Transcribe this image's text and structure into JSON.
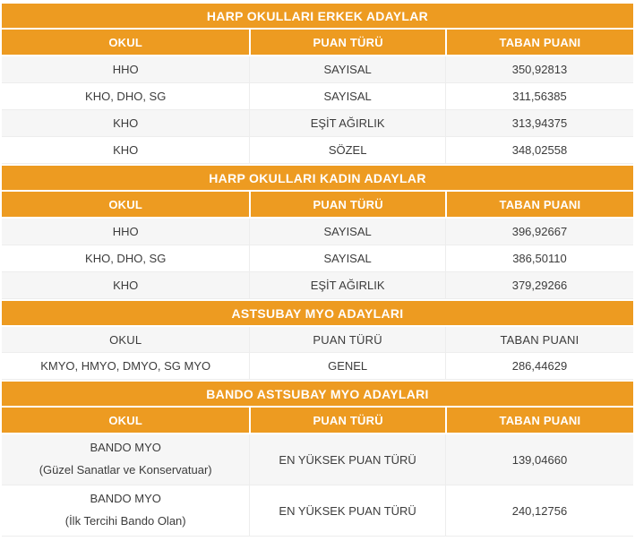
{
  "colors": {
    "orange": "#ED9B21",
    "stripe": "#F6F6F6",
    "border": "#EDEDED",
    "text": "#3C3C3C",
    "header_text": "#FFFFFF"
  },
  "columns": [
    "OKUL",
    "PUAN TÜRÜ",
    "TABAN PUANI"
  ],
  "sections": [
    {
      "title": "HARP OKULLARI ERKEK ADAYLAR",
      "rows": [
        {
          "okul": "HHO",
          "puan": "SAYISAL",
          "taban": "350,92813"
        },
        {
          "okul": "KHO, DHO, SG",
          "puan": "SAYISAL",
          "taban": "311,56385"
        },
        {
          "okul": "KHO",
          "puan": "EŞİT AĞIRLIK",
          "taban": "313,94375"
        },
        {
          "okul": "KHO",
          "puan": "SÖZEL",
          "taban": "348,02558"
        }
      ]
    },
    {
      "title": "HARP OKULLARI KADIN ADAYLAR",
      "rows": [
        {
          "okul": "HHO",
          "puan": "SAYISAL",
          "taban": "396,92667"
        },
        {
          "okul": "KHO, DHO, SG",
          "puan": "SAYISAL",
          "taban": "386,50110"
        },
        {
          "okul": "KHO",
          "puan": "EŞİT AĞIRLIK",
          "taban": "379,29266"
        }
      ]
    },
    {
      "title": "ASTSUBAY MYO ADAYLARI",
      "rows": [
        {
          "okul": "KMYO, HMYO, DMYO, SG MYO",
          "puan": "GENEL",
          "taban": "286,44629"
        }
      ]
    },
    {
      "title": "BANDO ASTSUBAY MYO ADAYLARI",
      "rows": [
        {
          "okul_line1": "BANDO MYO",
          "okul_line2": "(Güzel Sanatlar ve Konservatuar)",
          "puan": "EN YÜKSEK PUAN TÜRÜ",
          "taban": "139,04660"
        },
        {
          "okul_line1": "BANDO MYO",
          "okul_line2": "(İlk Tercihi Bando Olan)",
          "puan": "EN YÜKSEK PUAN TÜRÜ",
          "taban": "240,12756"
        }
      ]
    }
  ],
  "chart_data": [
    {
      "type": "table",
      "title": "HARP OKULLARI ERKEK ADAYLAR",
      "columns": [
        "OKUL",
        "PUAN TÜRÜ",
        "TABAN PUANI"
      ],
      "rows": [
        [
          "HHO",
          "SAYISAL",
          "350,92813"
        ],
        [
          "KHO, DHO, SG",
          "SAYISAL",
          "311,56385"
        ],
        [
          "KHO",
          "EŞİT AĞIRLIK",
          "313,94375"
        ],
        [
          "KHO",
          "SÖZEL",
          "348,02558"
        ]
      ]
    },
    {
      "type": "table",
      "title": "HARP OKULLARI KADIN ADAYLAR",
      "columns": [
        "OKUL",
        "PUAN TÜRÜ",
        "TABAN PUANI"
      ],
      "rows": [
        [
          "HHO",
          "SAYISAL",
          "396,92667"
        ],
        [
          "KHO, DHO, SG",
          "SAYISAL",
          "386,50110"
        ],
        [
          "KHO",
          "EŞİT AĞIRLIK",
          "379,29266"
        ]
      ]
    },
    {
      "type": "table",
      "title": "ASTSUBAY MYO ADAYLARI",
      "columns": [
        "OKUL",
        "PUAN TÜRÜ",
        "TABAN PUANI"
      ],
      "rows": [
        [
          "KMYO, HMYO, DMYO, SG MYO",
          "GENEL",
          "286,44629"
        ]
      ]
    },
    {
      "type": "table",
      "title": "BANDO ASTSUBAY MYO ADAYLARI",
      "columns": [
        "OKUL",
        "PUAN TÜRÜ",
        "TABAN PUANI"
      ],
      "rows": [
        [
          "BANDO MYO (Güzel Sanatlar ve Konservatuar)",
          "EN YÜKSEK PUAN TÜRÜ",
          "139,04660"
        ],
        [
          "BANDO MYO (İlk Tercihi Bando Olan)",
          "EN YÜKSEK PUAN TÜRÜ",
          "240,12756"
        ]
      ]
    }
  ]
}
